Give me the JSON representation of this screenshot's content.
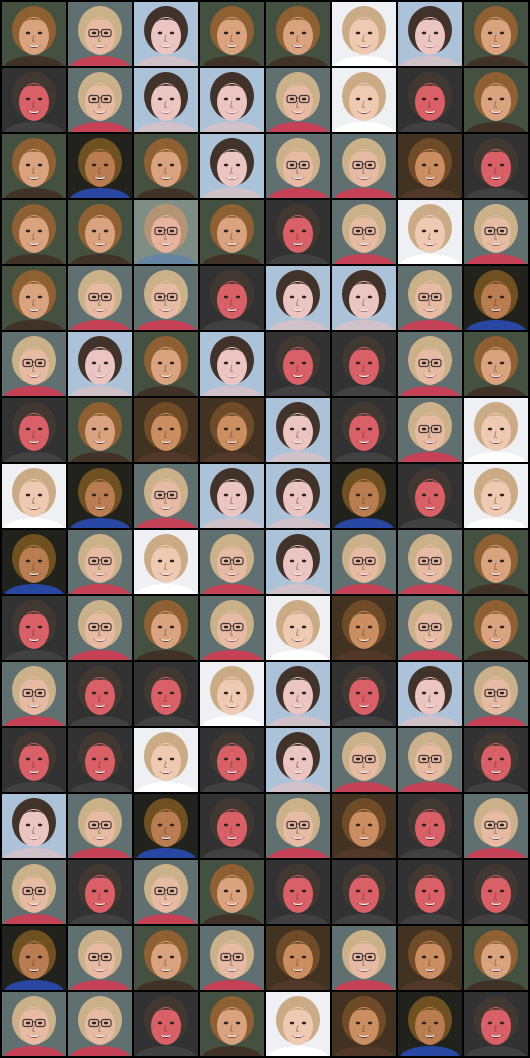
{
  "grid": {
    "columns": 8,
    "rows": 16,
    "background": "#000000"
  },
  "archetypes": {
    "A": {
      "bg": "#3d4a3a",
      "hair": "#8a5a2a",
      "skin": "#d8a07a",
      "glasses": false,
      "mouth": "#7a2020",
      "shirt": "#3a2a20"
    },
    "B": {
      "bg": "#5a6a6a",
      "hair": "#c9ae86",
      "skin": "#e6b8a0",
      "glasses": true,
      "mouth": "#9a3a3a",
      "shirt": "#c23a50"
    },
    "C": {
      "bg": "#a8c0d8",
      "hair": "#3a2a22",
      "skin": "#eac3c0",
      "glasses": false,
      "mouth": "#c05a6a",
      "shirt": "#d0c0c8"
    },
    "D": {
      "bg": "#eef0f4",
      "hair": "#c8a880",
      "skin": "#efc8b0",
      "glasses": false,
      "mouth": "#8a2a2a",
      "shirt": "#ffffff"
    },
    "E": {
      "bg": "#2a2a2a",
      "hair": "#3a302a",
      "skin": "#d85a60",
      "glasses": false,
      "mouth": "#5a1010",
      "shirt": "#3a3a3a"
    },
    "F": {
      "bg": "#1a1a14",
      "hair": "#6a4a18",
      "skin": "#b8784a",
      "glasses": false,
      "mouth": "#3a1010",
      "shirt": "#2040a0"
    },
    "G": {
      "bg": "#3a2a18",
      "hair": "#6a4420",
      "skin": "#c88a5a",
      "glasses": false,
      "mouth": "#6a1a1a",
      "shirt": "#4a3020"
    },
    "H": {
      "bg": "#7a8a80",
      "hair": "#b09070",
      "skin": "#e8b098",
      "glasses": true,
      "mouth": "#a03a40",
      "shirt": "#6080a0"
    }
  },
  "tiles": [
    "A",
    "B",
    "C",
    "A",
    "A",
    "D",
    "C",
    "A",
    "E",
    "B",
    "C",
    "C",
    "B",
    "D",
    "E",
    "A",
    "A",
    "F",
    "A",
    "C",
    "B",
    "B",
    "G",
    "E",
    "A",
    "A",
    "H",
    "A",
    "E",
    "B",
    "D",
    "B",
    "A",
    "B",
    "B",
    "E",
    "C",
    "C",
    "B",
    "F",
    "B",
    "C",
    "A",
    "C",
    "E",
    "E",
    "B",
    "A",
    "E",
    "A",
    "G",
    "G",
    "C",
    "E",
    "B",
    "D",
    "D",
    "F",
    "B",
    "C",
    "C",
    "F",
    "E",
    "D",
    "F",
    "B",
    "D",
    "B",
    "C",
    "B",
    "B",
    "A",
    "E",
    "B",
    "A",
    "B",
    "D",
    "G",
    "B",
    "A",
    "B",
    "E",
    "E",
    "D",
    "C",
    "E",
    "C",
    "B",
    "E",
    "E",
    "D",
    "E",
    "C",
    "B",
    "B",
    "E",
    "C",
    "B",
    "F",
    "E",
    "B",
    "G",
    "E",
    "B",
    "B",
    "E",
    "B",
    "A",
    "E",
    "E",
    "E",
    "E",
    "F",
    "B",
    "A",
    "B",
    "G",
    "B",
    "G",
    "A",
    "B",
    "B",
    "E",
    "A",
    "D",
    "G",
    "F",
    "E"
  ]
}
